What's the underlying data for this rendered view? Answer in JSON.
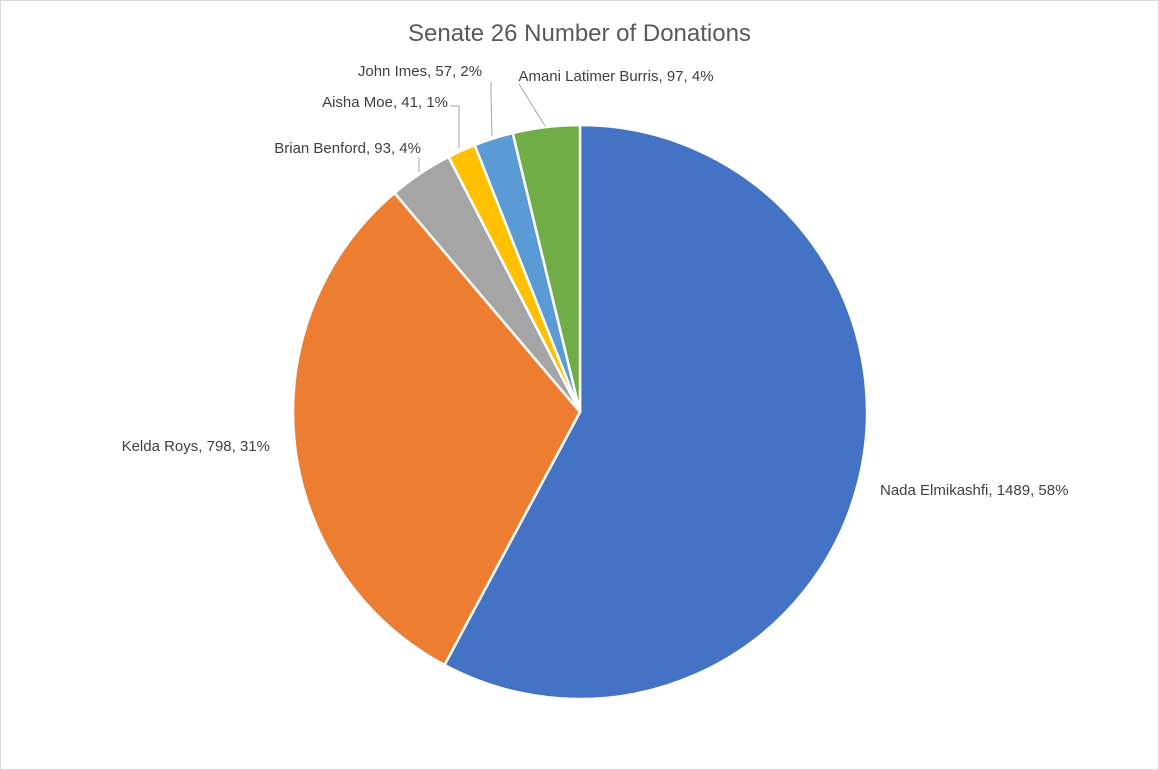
{
  "chart_data": {
    "type": "pie",
    "title": "Senate 26 Number of Donations",
    "categories": [
      "Nada Elmikashfi",
      "Kelda Roys",
      "Brian Benford",
      "Aisha Moe",
      "John Imes",
      "Amani Latimer Burris"
    ],
    "values": [
      1489,
      798,
      93,
      41,
      57,
      97
    ],
    "value_labels": [
      "Nada Elmikashfi, 1489, 58%",
      "Kelda Roys, 798, 31%",
      "Brian Benford, 93, 4%",
      "Aisha Moe, 41, 1%",
      "John Imes, 57, 2%",
      "Amani Latimer Burris, 97, 4%"
    ],
    "colors": [
      "#4472c4",
      "#ed7d31",
      "#a5a5a5",
      "#ffc000",
      "#5b9bd5",
      "#70ad47"
    ]
  }
}
